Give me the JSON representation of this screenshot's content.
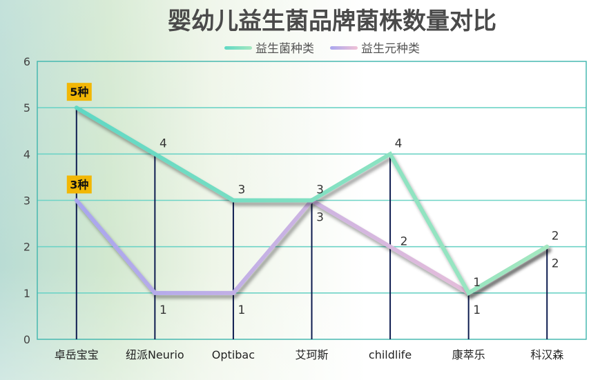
{
  "chart_data": {
    "type": "line",
    "title": "婴幼儿益生菌品牌菌株数量对比",
    "categories": [
      "卓岳宝宝",
      "纽派Neurio",
      "Optibac",
      "艾珂斯",
      "childlife",
      "康萃乐",
      "科汉森"
    ],
    "series": [
      {
        "name": "益生菌种类",
        "values": [
          5,
          4,
          3,
          3,
          4,
          1,
          2
        ],
        "color_start": "#5fd8c4",
        "color_end": "#a4e8c0",
        "data_labels": [
          "",
          "4",
          "3",
          "3",
          "4",
          "1",
          "2"
        ]
      },
      {
        "name": "益生元种类",
        "values": [
          3,
          1,
          1,
          3,
          2,
          1,
          2
        ],
        "color_start": "#a9a6ee",
        "color_end": "#f1c2d6",
        "data_labels": [
          "",
          "1",
          "1",
          "3",
          "2",
          "1",
          "2"
        ]
      }
    ],
    "callouts": [
      {
        "series": 0,
        "index": 0,
        "text": "5种",
        "color": "#f2b705"
      },
      {
        "series": 1,
        "index": 0,
        "text": "3种",
        "color": "#f2b705"
      }
    ],
    "ylim": [
      0,
      6
    ],
    "yticks": [
      "0",
      "1",
      "2",
      "3",
      "4",
      "5",
      "6"
    ],
    "grid": true,
    "legend_position": "top-center",
    "colors": {
      "grid": "#6dd3c6",
      "axis_frame": "#47b8b0",
      "drop_line": "#0d1b4f",
      "title": "#4a4a4a"
    }
  }
}
